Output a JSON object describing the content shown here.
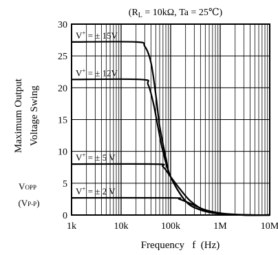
{
  "chart_data": {
    "type": "line",
    "title": "(Rₗ = 10kΩ,  Ta = 25℃)",
    "title_parts": {
      "open": "(R",
      "sub": "L",
      "mid": " = 10kΩ,  Ta = 25℃)"
    },
    "ylabel_line1": "Maximum Output",
    "ylabel_line2": "Voltage Swing",
    "yunit_line1": {
      "main": "V",
      "sub": "OPP"
    },
    "yunit_line2": {
      "open": "(V",
      "sub": "P-P",
      "close": ")"
    },
    "xlabel": "Frequency   f  (Hz)",
    "x_scale": "log",
    "xlim": [
      1000,
      10000000
    ],
    "ylim": [
      0,
      30
    ],
    "x_ticks": [
      {
        "value": 1000,
        "label": "1k"
      },
      {
        "value": 10000,
        "label": "10k"
      },
      {
        "value": 100000,
        "label": "100k"
      },
      {
        "value": 1000000,
        "label": "1M"
      },
      {
        "value": 10000000,
        "label": "10M"
      }
    ],
    "y_ticks": [
      0,
      5,
      10,
      15,
      20,
      25,
      30
    ],
    "grid": true,
    "series": [
      {
        "name": "V⁺ = ± 15V",
        "label_parts": {
          "v": "V",
          "sup": "+",
          "rest": " = ± 15V"
        },
        "points": [
          [
            1000,
            27.2
          ],
          [
            20000,
            27.2
          ],
          [
            30000,
            26.5
          ],
          [
            40000,
            24.0
          ],
          [
            50000,
            19.0
          ],
          [
            60000,
            14.0
          ],
          [
            80000,
            9.0
          ],
          [
            100000,
            6.0
          ],
          [
            200000,
            2.2
          ],
          [
            400000,
            0.8
          ],
          [
            1000000,
            0.2
          ],
          [
            3000000,
            0.0
          ],
          [
            10000000,
            0.0
          ]
        ]
      },
      {
        "name": "V⁺ = ± 12V",
        "label_parts": {
          "v": "V",
          "sup": "+",
          "rest": " = ± 12V"
        },
        "points": [
          [
            1000,
            21.3
          ],
          [
            25000,
            21.3
          ],
          [
            35000,
            20.5
          ],
          [
            45000,
            17.5
          ],
          [
            55000,
            14.0
          ],
          [
            70000,
            10.0
          ],
          [
            100000,
            6.0
          ],
          [
            200000,
            2.2
          ],
          [
            400000,
            0.8
          ],
          [
            1000000,
            0.2
          ],
          [
            3000000,
            0.0
          ],
          [
            10000000,
            0.0
          ]
        ]
      },
      {
        "name": "V⁺ = ± 5 V",
        "label_parts": {
          "v": "V",
          "sup": "+",
          "rest": " = ± 5 V"
        },
        "points": [
          [
            1000,
            8.0
          ],
          [
            50000,
            8.0
          ],
          [
            70000,
            7.6
          ],
          [
            100000,
            6.0
          ],
          [
            150000,
            4.2
          ],
          [
            250000,
            2.2
          ],
          [
            500000,
            0.7
          ],
          [
            1000000,
            0.2
          ],
          [
            3000000,
            0.0
          ],
          [
            10000000,
            0.0
          ]
        ]
      },
      {
        "name": "V⁺ = ± 2 V",
        "label_parts": {
          "v": "V",
          "sup": "+",
          "rest": " = ± 2 V"
        },
        "points": [
          [
            1000,
            2.7
          ],
          [
            100000,
            2.7
          ],
          [
            150000,
            2.5
          ],
          [
            250000,
            1.8
          ],
          [
            500000,
            0.8
          ],
          [
            1000000,
            0.3
          ],
          [
            2000000,
            0.1
          ],
          [
            5000000,
            0.0
          ],
          [
            10000000,
            0.0
          ]
        ]
      }
    ]
  }
}
